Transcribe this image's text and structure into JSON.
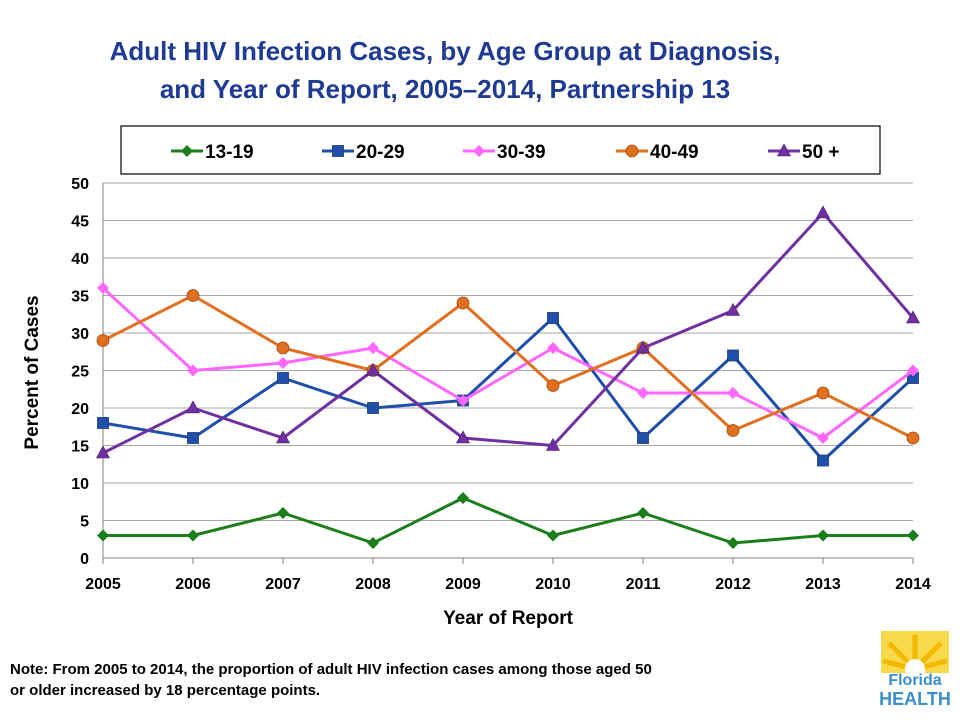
{
  "chart_data": {
    "type": "line",
    "title": "Adult HIV Infection Cases, by Age Group at Diagnosis,",
    "subtitle": "and Year of Report, 2005–2014, Partnership 13",
    "xlabel": "Year of Report",
    "ylabel": "Percent of Cases",
    "ylim": [
      0,
      50
    ],
    "yticks": [
      0,
      5,
      10,
      15,
      20,
      25,
      30,
      35,
      40,
      45,
      50
    ],
    "grid": "horizontal",
    "legend_position": "top",
    "x": [
      "2005",
      "2006",
      "2007",
      "2008",
      "2009",
      "2010",
      "2011",
      "2012",
      "2013",
      "2014"
    ],
    "series": [
      {
        "name": "13-19",
        "color": "#1a7f1a",
        "marker": "diamond",
        "values": [
          3,
          3,
          6,
          2,
          8,
          3,
          6,
          2,
          3,
          3
        ]
      },
      {
        "name": "20-29",
        "color": "#1f4fa8",
        "marker": "square",
        "values": [
          18,
          16,
          24,
          20,
          21,
          32,
          16,
          27,
          13,
          24
        ]
      },
      {
        "name": "30-39",
        "color": "#ff66ff",
        "marker": "diamond",
        "values": [
          36,
          25,
          26,
          28,
          21,
          28,
          22,
          22,
          16,
          25
        ]
      },
      {
        "name": "40-49",
        "color": "#e07020",
        "marker": "circle",
        "values": [
          29,
          35,
          28,
          25,
          34,
          23,
          28,
          17,
          22,
          16
        ]
      },
      {
        "name": "50 +",
        "color": "#7030a0",
        "marker": "triangle",
        "values": [
          14,
          20,
          16,
          25,
          16,
          15,
          28,
          33,
          46,
          32
        ]
      }
    ]
  },
  "note": {
    "line1": "Note:  From 2005 to 2014, the proportion of adult HIV infection cases among those aged 50",
    "line2": "or older increased by 18 percentage points."
  },
  "logo": {
    "line1": "Florida",
    "line2": "HEALTH",
    "icon": "sun-logo-icon",
    "colors": {
      "sun": "#f5b800",
      "sun_bg": "#f7d94c",
      "text": "#3a8fc8"
    }
  }
}
